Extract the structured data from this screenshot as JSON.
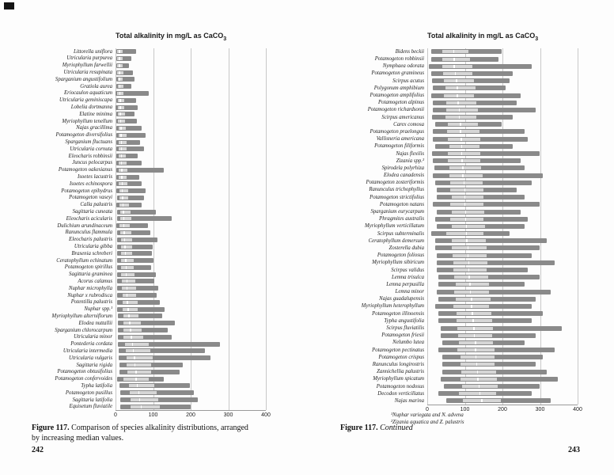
{
  "style": {
    "range_bar_color": "#8a8a8a",
    "iqr_box_color": "#d6d6d6",
    "median_color": "#ffffff",
    "gridline_color": "#c8c8c8",
    "axis_line_color": "#9a9a9a",
    "text_color": "#1a1a1a"
  },
  "page_left": {
    "page_number": "242",
    "caption_bold": "Figure 117.",
    "caption_text": " Comparison of species alkalinity distributions, arranged by increasing median values."
  },
  "page_right": {
    "page_number": "243",
    "caption_bold": "Figure 117.",
    "caption_italic": "Continued",
    "footnote1": "¹Nuphar variegata and N. advena",
    "footnote2": "²Zizania aquatica and Z. palustris"
  },
  "chart_data": [
    {
      "type": "boxplot",
      "orientation": "horizontal",
      "title": "Total alkalinity in mg/L as CaCO₃",
      "title_main": "Total alkalinity in mg/L as CaCO",
      "title_sub": "3",
      "xlim": [
        0,
        400
      ],
      "xticks": [
        0,
        100,
        200,
        300,
        400
      ],
      "grid": "vertical",
      "values_format": [
        "min",
        "q1",
        "median",
        "q3",
        "max"
      ],
      "species": [
        {
          "name": "Littorella uniflora",
          "values": [
            2,
            5,
            10,
            19,
            55
          ]
        },
        {
          "name": "Utricularia purpurea",
          "values": [
            2,
            5,
            10,
            18,
            42
          ]
        },
        {
          "name": "Myriophyllum farwellii",
          "values": [
            2,
            5,
            10,
            18,
            36
          ]
        },
        {
          "name": "Utricularia resupinata",
          "values": [
            2,
            5,
            11,
            20,
            46
          ]
        },
        {
          "name": "Sparganium angustifolium",
          "values": [
            2,
            6,
            11,
            20,
            50
          ]
        },
        {
          "name": "Gratiola aurea",
          "values": [
            2,
            6,
            12,
            22,
            42
          ]
        },
        {
          "name": "Eriocaulon aquaticum",
          "values": [
            1,
            5,
            12,
            22,
            88
          ]
        },
        {
          "name": "Utricularia geminiscapa",
          "values": [
            2,
            6,
            13,
            24,
            55
          ]
        },
        {
          "name": "Lobelia dortmanna",
          "values": [
            1,
            6,
            13,
            24,
            60
          ]
        },
        {
          "name": "Elatine minima",
          "values": [
            2,
            6,
            13,
            25,
            50
          ]
        },
        {
          "name": "Myriophyllum tenellum",
          "values": [
            2,
            7,
            14,
            26,
            56
          ]
        },
        {
          "name": "Najas gracillima",
          "values": [
            3,
            8,
            15,
            28,
            70
          ]
        },
        {
          "name": "Potamogeton diversifolius",
          "values": [
            3,
            8,
            15,
            30,
            80
          ]
        },
        {
          "name": "Sparganium fluctuans",
          "values": [
            3,
            8,
            16,
            30,
            66
          ]
        },
        {
          "name": "Utricularia cornuta",
          "values": [
            3,
            8,
            16,
            30,
            76
          ]
        },
        {
          "name": "Eleocharis robbinsii",
          "values": [
            3,
            8,
            16,
            28,
            60
          ]
        },
        {
          "name": "Juncus pelocarpus",
          "values": [
            2,
            8,
            16,
            30,
            70
          ]
        },
        {
          "name": "Potamogeton oakesianus",
          "values": [
            3,
            9,
            17,
            32,
            128
          ]
        },
        {
          "name": "Isoetes lacustris",
          "values": [
            2,
            8,
            17,
            30,
            64
          ]
        },
        {
          "name": "Isoetes echinospora",
          "values": [
            3,
            9,
            18,
            32,
            70
          ]
        },
        {
          "name": "Potamogeton epihydrus",
          "values": [
            3,
            10,
            18,
            34,
            80
          ]
        },
        {
          "name": "Potamogeton vaseyi",
          "values": [
            4,
            10,
            19,
            34,
            76
          ]
        },
        {
          "name": "Calla palustris",
          "values": [
            3,
            10,
            20,
            35,
            70
          ]
        },
        {
          "name": "Sagittaria cuneata",
          "values": [
            4,
            12,
            21,
            40,
            108
          ]
        },
        {
          "name": "Eleocharis acicularis",
          "values": [
            4,
            12,
            22,
            42,
            150
          ]
        },
        {
          "name": "Dulichium arundinaceum",
          "values": [
            3,
            10,
            22,
            38,
            86
          ]
        },
        {
          "name": "Ranunculus flammula",
          "values": [
            4,
            12,
            23,
            42,
            92
          ]
        },
        {
          "name": "Eleocharis palustris",
          "values": [
            4,
            14,
            24,
            45,
            112
          ]
        },
        {
          "name": "Utricularia gibba",
          "values": [
            4,
            14,
            25,
            44,
            100
          ]
        },
        {
          "name": "Brasenia schreberi",
          "values": [
            4,
            14,
            26,
            45,
            96
          ]
        },
        {
          "name": "Ceratophyllum echinatum",
          "values": [
            5,
            15,
            27,
            48,
            100
          ]
        },
        {
          "name": "Potamogeton spirillus",
          "values": [
            4,
            14,
            28,
            48,
            95
          ]
        },
        {
          "name": "Sagittaria graminea",
          "values": [
            5,
            15,
            28,
            50,
            108
          ]
        },
        {
          "name": "Acorus calamus",
          "values": [
            5,
            16,
            30,
            52,
            104
          ]
        },
        {
          "name": "Nuphar microphylla",
          "values": [
            5,
            16,
            30,
            54,
            114
          ]
        },
        {
          "name": "Nuphar x rubrodisca",
          "values": [
            5,
            18,
            31,
            55,
            110
          ]
        },
        {
          "name": "Potentilla palustris",
          "values": [
            5,
            18,
            32,
            58,
            118
          ]
        },
        {
          "name": "Nuphar spp.¹",
          "values": [
            4,
            18,
            34,
            60,
            130
          ]
        },
        {
          "name": "Myriophyllum alterniflorum",
          "values": [
            6,
            20,
            36,
            62,
            124
          ]
        },
        {
          "name": "Elodea nuttallii",
          "values": [
            6,
            20,
            38,
            68,
            158
          ]
        },
        {
          "name": "Sparganium chlorocarpum",
          "values": [
            6,
            22,
            40,
            70,
            140
          ]
        },
        {
          "name": "Utricularia minor",
          "values": [
            6,
            22,
            42,
            74,
            150
          ]
        },
        {
          "name": "Pontederia cordata",
          "values": [
            6,
            25,
            45,
            88,
            278
          ]
        },
        {
          "name": "Utricularia intermedia",
          "values": [
            8,
            28,
            47,
            92,
            238
          ]
        },
        {
          "name": "Utricularia vulgaris",
          "values": [
            8,
            30,
            50,
            98,
            252
          ]
        },
        {
          "name": "Sagittaria rigida",
          "values": [
            10,
            30,
            52,
            95,
            178
          ]
        },
        {
          "name": "Potamogeton obtusifolius",
          "values": [
            10,
            32,
            55,
            95,
            170
          ]
        },
        {
          "name": "Potamogeton confervoides",
          "values": [
            4,
            20,
            55,
            88,
            128
          ]
        },
        {
          "name": "Typha latifolia",
          "values": [
            10,
            35,
            58,
            104,
            198
          ]
        },
        {
          "name": "Potamogeton pusillus",
          "values": [
            12,
            38,
            62,
            110,
            208
          ]
        },
        {
          "name": "Sagittaria latifolia",
          "values": [
            12,
            40,
            64,
            114,
            218
          ]
        },
        {
          "name": "Equisetum fluviatile",
          "values": [
            12,
            40,
            68,
            118,
            200
          ]
        }
      ]
    },
    {
      "type": "boxplot",
      "orientation": "horizontal",
      "title": "Total alkalinity in mg/L as CaCO₃",
      "title_main": "Total alkalinity in mg/L as CaCO",
      "title_sub": "3",
      "xlim": [
        0,
        400
      ],
      "xticks": [
        0,
        100,
        200,
        300,
        400
      ],
      "grid": "vertical",
      "values_format": [
        "min",
        "q1",
        "median",
        "q3",
        "max"
      ],
      "species": [
        {
          "name": "Bidens beckii",
          "values": [
            10,
            40,
            70,
            110,
            198
          ]
        },
        {
          "name": "Potamogeton robbinsii",
          "values": [
            10,
            40,
            72,
            114,
            190
          ]
        },
        {
          "name": "Nymphaea odorata",
          "values": [
            5,
            40,
            72,
            120,
            278
          ]
        },
        {
          "name": "Potamogeton gramineus",
          "values": [
            10,
            42,
            75,
            120,
            228
          ]
        },
        {
          "name": "Scirpus acutus",
          "values": [
            12,
            45,
            78,
            124,
            218
          ]
        },
        {
          "name": "Polygonum amphibium",
          "values": [
            15,
            48,
            80,
            128,
            208
          ]
        },
        {
          "name": "Potamogeton amplifolius",
          "values": [
            10,
            45,
            80,
            125,
            248
          ]
        },
        {
          "name": "Potamogeton alpinus",
          "values": [
            15,
            50,
            82,
            130,
            238
          ]
        },
        {
          "name": "Potamogeton richardsonii",
          "values": [
            15,
            50,
            85,
            134,
            288
          ]
        },
        {
          "name": "Scirpus americanus",
          "values": [
            12,
            48,
            85,
            130,
            228
          ]
        },
        {
          "name": "Carex comosa",
          "values": [
            20,
            55,
            88,
            134,
            198
          ]
        },
        {
          "name": "Potamogeton praelongus",
          "values": [
            15,
            52,
            88,
            138,
            258
          ]
        },
        {
          "name": "Vallisneria americana",
          "values": [
            15,
            55,
            90,
            140,
            268
          ]
        },
        {
          "name": "Potamogeton filiformis",
          "values": [
            20,
            58,
            92,
            140,
            228
          ]
        },
        {
          "name": "Najas flexilis",
          "values": [
            12,
            55,
            92,
            142,
            298
          ]
        },
        {
          "name": "Zizania spp.²",
          "values": [
            15,
            55,
            93,
            140,
            248
          ]
        },
        {
          "name": "Spirodela polyrhiza",
          "values": [
            18,
            58,
            95,
            144,
            258
          ]
        },
        {
          "name": "Elodea canadensis",
          "values": [
            15,
            58,
            95,
            148,
            308
          ]
        },
        {
          "name": "Potamogeton zosteriformis",
          "values": [
            20,
            60,
            98,
            148,
            278
          ]
        },
        {
          "name": "Ranunculus trichophyllus",
          "values": [
            25,
            62,
            100,
            150,
            238
          ]
        },
        {
          "name": "Potamogeton strictifolius",
          "values": [
            25,
            65,
            100,
            150,
            258
          ]
        },
        {
          "name": "Potamogeton natans",
          "values": [
            15,
            60,
            100,
            150,
            298
          ]
        },
        {
          "name": "Sparganium eurycarpum",
          "values": [
            25,
            65,
            102,
            152,
            248
          ]
        },
        {
          "name": "Phragmites australis",
          "values": [
            20,
            62,
            102,
            150,
            268
          ]
        },
        {
          "name": "Myriophyllum verticillatum",
          "values": [
            25,
            65,
            104,
            154,
            258
          ]
        },
        {
          "name": "Scirpus subterminalis",
          "values": [
            10,
            50,
            104,
            150,
            218
          ]
        },
        {
          "name": "Ceratophyllum demersum",
          "values": [
            20,
            65,
            105,
            155,
            318
          ]
        },
        {
          "name": "Zosterella dubia",
          "values": [
            20,
            65,
            108,
            158,
            298
          ]
        },
        {
          "name": "Potamogeton foliosus",
          "values": [
            25,
            68,
            108,
            158,
            278
          ]
        },
        {
          "name": "Myriophyllum sibiricum",
          "values": [
            25,
            70,
            110,
            160,
            338
          ]
        },
        {
          "name": "Scirpus validus",
          "values": [
            25,
            70,
            110,
            158,
            268
          ]
        },
        {
          "name": "Lemna trisulca",
          "values": [
            30,
            72,
            112,
            162,
            298
          ]
        },
        {
          "name": "Lemna perpusilla",
          "values": [
            30,
            75,
            114,
            164,
            258
          ]
        },
        {
          "name": "Lemna minor",
          "values": [
            25,
            72,
            115,
            165,
            328
          ]
        },
        {
          "name": "Najas guadalupensis",
          "values": [
            30,
            75,
            118,
            168,
            288
          ]
        },
        {
          "name": "Myriophyllum heterophyllum",
          "values": [
            20,
            70,
            118,
            164,
            278
          ]
        },
        {
          "name": "Potamogeton illinoensis",
          "values": [
            30,
            78,
            120,
            170,
            308
          ]
        },
        {
          "name": "Typha angustifolia",
          "values": [
            30,
            78,
            122,
            172,
            278
          ]
        },
        {
          "name": "Scirpus fluviatilis",
          "values": [
            35,
            80,
            124,
            175,
            358
          ]
        },
        {
          "name": "Potamogeton friesii",
          "values": [
            35,
            82,
            125,
            172,
            288
          ]
        },
        {
          "name": "Nelumbo lutea",
          "values": [
            40,
            85,
            128,
            175,
            258
          ]
        },
        {
          "name": "Potamogeton pectinatus",
          "values": [
            30,
            80,
            128,
            178,
            338
          ]
        },
        {
          "name": "Potamogeton crispus",
          "values": [
            40,
            88,
            130,
            180,
            308
          ]
        },
        {
          "name": "Ranunculus longirostris",
          "values": [
            40,
            88,
            132,
            180,
            288
          ]
        },
        {
          "name": "Zannichellia palustris",
          "values": [
            40,
            90,
            134,
            184,
            318
          ]
        },
        {
          "name": "Myriophyllum spicatum",
          "values": [
            35,
            88,
            135,
            185,
            348
          ]
        },
        {
          "name": "Potamogeton nodosus",
          "values": [
            45,
            92,
            138,
            188,
            298
          ]
        },
        {
          "name": "Decodon verticillatus",
          "values": [
            30,
            85,
            140,
            184,
            278
          ]
        },
        {
          "name": "Najas marina",
          "values": [
            50,
            95,
            145,
            195,
            328
          ]
        }
      ]
    }
  ]
}
